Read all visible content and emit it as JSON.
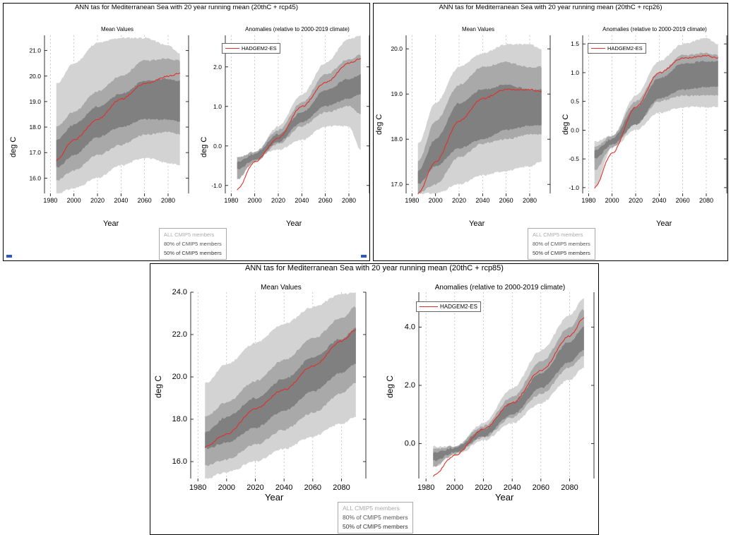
{
  "colors": {
    "all": "#d3d3d3",
    "p80": "#a9a9a9",
    "p50": "#808080",
    "model": "#e0302a",
    "grid": "#aaaaaa"
  },
  "panels": [
    {
      "title": "ANN tas for Mediterranean Sea with 20 year running mean (20thC + rcp45)",
      "mean_title": "Mean Values",
      "anom_title": "Anomalies (relative to 2000-2019 climate)",
      "ylabel": "deg C",
      "xlabel": "Year",
      "legend": [
        "ALL CMIP5 members",
        "80% of CMIP5 members",
        "50% of CMIP5 members"
      ],
      "model_name": "HADGEM2-ES"
    },
    {
      "title": "ANN tas for Mediterranean Sea with 20 year running mean (20thC + rcp26)",
      "mean_title": "Mean Values",
      "anom_title": "Anomalies (relative to 2000-2019 climate)",
      "ylabel": "deg C",
      "xlabel": "Year",
      "legend": [
        "ALL CMIP5 members",
        "80% of CMIP5 members",
        "50% of CMIP5 members"
      ],
      "model_name": "HADGEM2-ES"
    },
    {
      "title": "ANN tas for Mediterranean Sea with 20 year running mean (20thC + rcp85)",
      "mean_title": "Mean Values",
      "anom_title": "Anomalies (relative to 2000-2019 climate)",
      "ylabel": "deg C",
      "xlabel": "Year",
      "legend": [
        "ALL CMIP5 members",
        "80% of CMIP5 members",
        "50% of CMIP5 members"
      ],
      "model_name": "HADGEM2-ES"
    }
  ],
  "chart_data": [
    {
      "id": "rcp45-mean",
      "type": "area",
      "title": "Mean Values",
      "xlabel": "Year",
      "ylabel": "deg C",
      "xlim": [
        1975,
        2095
      ],
      "ylim": [
        15.4,
        21.6
      ],
      "xticks": [
        "1980",
        "2000",
        "2020",
        "2040",
        "2060",
        "2080"
      ],
      "yticks": [
        "16.0",
        "17.0",
        "18.0",
        "19.0",
        "20.0",
        "21.0"
      ],
      "x": [
        1985,
        2000,
        2020,
        2040,
        2060,
        2080,
        2090
      ],
      "series": [
        {
          "name": "ALL CMIP5 members",
          "lower": [
            15.4,
            15.6,
            16.0,
            16.5,
            16.8,
            16.6,
            16.5
          ],
          "upper": [
            19.7,
            20.5,
            21.3,
            21.5,
            21.5,
            21.2,
            20.9
          ]
        },
        {
          "name": "80% of CMIP5 members",
          "lower": [
            15.9,
            16.3,
            16.9,
            17.3,
            17.7,
            17.8,
            17.7
          ],
          "upper": [
            18.0,
            18.6,
            19.4,
            20.0,
            20.6,
            20.7,
            20.6
          ]
        },
        {
          "name": "50% of CMIP5 members",
          "lower": [
            16.4,
            16.9,
            17.6,
            18.0,
            18.3,
            18.3,
            18.2
          ],
          "upper": [
            17.5,
            18.1,
            18.8,
            19.3,
            19.8,
            19.9,
            19.8
          ]
        },
        {
          "name": "HADGEM2-ES",
          "values": [
            16.7,
            17.5,
            18.3,
            19.1,
            19.7,
            20.0,
            20.1
          ]
        }
      ]
    },
    {
      "id": "rcp45-anom",
      "type": "area",
      "title": "Anomalies (relative to 2000-2019 climate)",
      "xlabel": "Year",
      "ylabel": "deg C",
      "xlim": [
        1975,
        2095
      ],
      "ylim": [
        -1.2,
        2.8
      ],
      "xticks": [
        "1980",
        "2000",
        "2020",
        "2040",
        "2060",
        "2080"
      ],
      "yticks": [
        "-1.0",
        "0.0",
        "1.0",
        "2.0"
      ],
      "x": [
        1985,
        2000,
        2020,
        2040,
        2060,
        2080,
        2090
      ],
      "series": [
        {
          "name": "ALL CMIP5 members",
          "lower": [
            -0.3,
            -0.25,
            -0.1,
            0.15,
            0.5,
            0.5,
            -0.1
          ],
          "upper": [
            -0.3,
            -0.2,
            0.5,
            1.3,
            2.1,
            2.7,
            2.8
          ]
        },
        {
          "name": "80% of CMIP5 members",
          "lower": [
            -0.85,
            -0.4,
            0.05,
            0.5,
            0.85,
            1.0,
            0.8
          ],
          "upper": [
            -0.3,
            -0.15,
            0.4,
            1.1,
            1.8,
            2.2,
            2.3
          ]
        },
        {
          "name": "50% of CMIP5 members",
          "lower": [
            -0.6,
            -0.35,
            0.1,
            0.6,
            1.0,
            1.2,
            1.3
          ],
          "upper": [
            -0.4,
            -0.2,
            0.3,
            0.85,
            1.4,
            1.7,
            1.8
          ]
        },
        {
          "name": "HADGEM2-ES",
          "values": [
            -1.1,
            -0.4,
            0.2,
            1.0,
            1.6,
            2.1,
            2.2
          ]
        }
      ]
    },
    {
      "id": "rcp26-mean",
      "type": "area",
      "title": "Mean Values",
      "xlabel": "Year",
      "ylabel": "deg C",
      "xlim": [
        1975,
        2095
      ],
      "ylim": [
        16.8,
        20.3
      ],
      "xticks": [
        "1980",
        "2000",
        "2020",
        "2040",
        "2060",
        "2080"
      ],
      "yticks": [
        "17.0",
        "18.0",
        "19.0",
        "20.0"
      ],
      "x": [
        1985,
        2000,
        2020,
        2040,
        2060,
        2080,
        2090
      ],
      "series": [
        {
          "name": "ALL CMIP5 members",
          "lower": [
            16.8,
            16.8,
            17.0,
            17.2,
            17.3,
            17.4,
            17.5
          ],
          "upper": [
            17.9,
            18.8,
            19.6,
            19.9,
            20.1,
            20.1,
            20.0
          ]
        },
        {
          "name": "80% of CMIP5 members",
          "lower": [
            16.8,
            17.0,
            17.6,
            17.9,
            18.0,
            18.1,
            18.1
          ],
          "upper": [
            17.5,
            18.4,
            19.2,
            19.6,
            19.7,
            19.6,
            19.6
          ]
        },
        {
          "name": "50% of CMIP5 members",
          "lower": [
            17.0,
            17.4,
            17.8,
            18.0,
            18.2,
            18.3,
            18.3
          ],
          "upper": [
            17.3,
            18.0,
            18.8,
            19.1,
            19.2,
            19.1,
            19.1
          ]
        },
        {
          "name": "HADGEM2-ES",
          "values": [
            16.8,
            17.5,
            18.4,
            18.9,
            19.1,
            19.1,
            19.05
          ]
        }
      ]
    },
    {
      "id": "rcp26-anom",
      "type": "area",
      "title": "Anomalies (relative to 2000-2019 climate)",
      "xlabel": "Year",
      "ylabel": "deg C",
      "xlim": [
        1975,
        2095
      ],
      "ylim": [
        -1.1,
        1.65
      ],
      "xticks": [
        "1980",
        "2000",
        "2020",
        "2040",
        "2060",
        "2080"
      ],
      "yticks": [
        "-1.0",
        "-0.5",
        "0.0",
        "0.5",
        "1.0",
        "1.5"
      ],
      "x": [
        1985,
        2000,
        2020,
        2040,
        2060,
        2080,
        2090
      ],
      "series": [
        {
          "name": "ALL CMIP5 members",
          "lower": [
            -1.0,
            -0.3,
            0.0,
            0.3,
            0.4,
            0.4,
            0.4
          ],
          "upper": [
            -0.2,
            -0.1,
            0.6,
            1.2,
            1.5,
            1.6,
            1.5
          ]
        },
        {
          "name": "80% of CMIP5 members",
          "lower": [
            -0.7,
            -0.3,
            0.1,
            0.5,
            0.6,
            0.6,
            0.6
          ],
          "upper": [
            -0.3,
            -0.1,
            0.5,
            1.0,
            1.3,
            1.35,
            1.3
          ]
        },
        {
          "name": "50% of CMIP5 members",
          "lower": [
            -0.5,
            -0.25,
            0.1,
            0.55,
            0.7,
            0.75,
            0.75
          ],
          "upper": [
            -0.35,
            -0.15,
            0.4,
            0.9,
            1.15,
            1.2,
            1.2
          ]
        },
        {
          "name": "HADGEM2-ES",
          "values": [
            -1.0,
            -0.4,
            0.4,
            1.0,
            1.25,
            1.3,
            1.25
          ]
        }
      ]
    },
    {
      "id": "rcp85-mean",
      "type": "area",
      "title": "Mean Values",
      "xlabel": "Year",
      "ylabel": "deg C",
      "xlim": [
        1975,
        2095
      ],
      "ylim": [
        15.2,
        24.0
      ],
      "xticks": [
        "1980",
        "2000",
        "2020",
        "2040",
        "2060",
        "2080"
      ],
      "yticks": [
        "16.0",
        "18.0",
        "20.0",
        "22.0",
        "24.0"
      ],
      "x": [
        1985,
        2000,
        2020,
        2040,
        2060,
        2080,
        2090
      ],
      "series": [
        {
          "name": "ALL CMIP5 members",
          "lower": [
            15.2,
            15.5,
            16.0,
            16.6,
            17.2,
            17.8,
            18.1
          ],
          "upper": [
            19.7,
            20.6,
            21.6,
            22.5,
            23.3,
            23.9,
            24.0
          ]
        },
        {
          "name": "80% of CMIP5 members",
          "lower": [
            15.8,
            16.1,
            16.8,
            17.5,
            18.3,
            19.2,
            19.7
          ],
          "upper": [
            18.1,
            18.8,
            19.8,
            20.8,
            21.8,
            22.8,
            23.3
          ]
        },
        {
          "name": "50% of CMIP5 members",
          "lower": [
            16.6,
            16.9,
            17.6,
            18.4,
            19.3,
            20.2,
            20.6
          ],
          "upper": [
            17.4,
            18.1,
            19.0,
            19.9,
            20.9,
            21.8,
            22.3
          ]
        },
        {
          "name": "HADGEM2-ES",
          "values": [
            16.7,
            17.3,
            18.5,
            19.4,
            20.5,
            21.7,
            22.2
          ]
        }
      ]
    },
    {
      "id": "rcp85-anom",
      "type": "area",
      "title": "Anomalies (relative to 2000-2019 climate)",
      "xlabel": "Year",
      "ylabel": "deg C",
      "xlim": [
        1975,
        2095
      ],
      "ylim": [
        -1.2,
        5.2
      ],
      "xticks": [
        "1980",
        "2000",
        "2020",
        "2040",
        "2060",
        "2080"
      ],
      "yticks": [
        "0.0",
        "2.0",
        "4.0"
      ],
      "x": [
        1985,
        2000,
        2020,
        2040,
        2060,
        2080,
        2090
      ],
      "series": [
        {
          "name": "ALL CMIP5 members",
          "lower": [
            -0.8,
            -0.4,
            0.1,
            0.7,
            1.4,
            2.2,
            2.6
          ],
          "upper": [
            -0.1,
            -0.1,
            0.7,
            1.9,
            3.2,
            4.4,
            5.0
          ]
        },
        {
          "name": "80% of CMIP5 members",
          "lower": [
            -0.8,
            -0.35,
            0.2,
            0.9,
            1.7,
            2.6,
            3.0
          ],
          "upper": [
            -0.2,
            -0.1,
            0.6,
            1.6,
            2.8,
            4.0,
            4.6
          ]
        },
        {
          "name": "50% of CMIP5 members",
          "lower": [
            -0.6,
            -0.3,
            0.25,
            1.0,
            1.9,
            2.8,
            3.2
          ],
          "upper": [
            -0.3,
            -0.15,
            0.5,
            1.4,
            2.4,
            3.5,
            4.0
          ]
        },
        {
          "name": "HADGEM2-ES",
          "values": [
            -1.1,
            -0.4,
            0.5,
            1.4,
            2.5,
            3.7,
            4.3
          ]
        }
      ]
    }
  ]
}
